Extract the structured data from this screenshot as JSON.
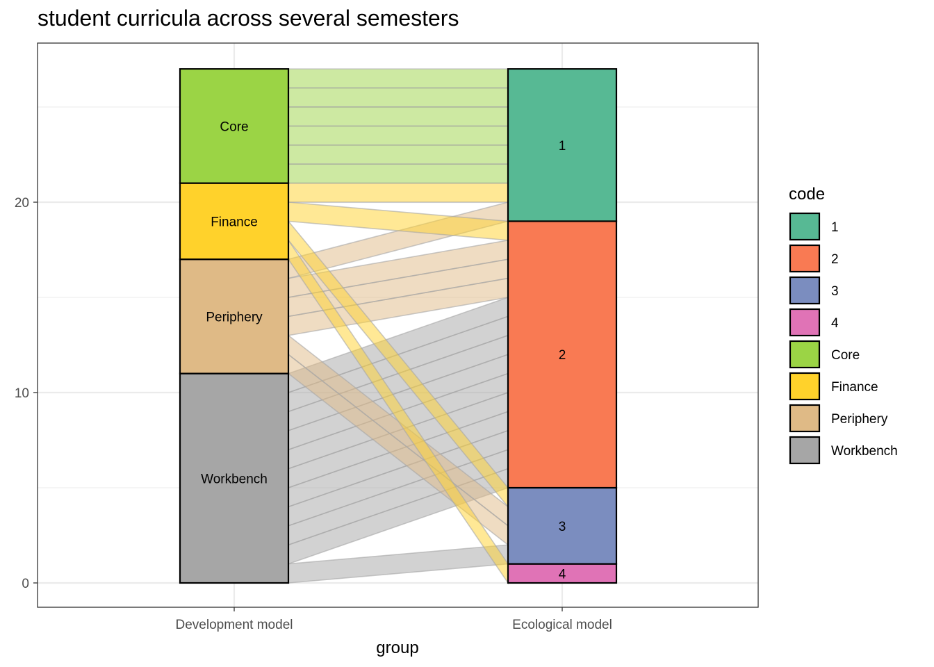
{
  "chart_data": {
    "type": "alluvial",
    "title": "student curricula across several semesters",
    "xlabel": "group",
    "ylabel": "",
    "x_axes": [
      "Development model",
      "Ecological model"
    ],
    "ylim": [
      -1.3,
      28.3
    ],
    "y_ticks": [
      0,
      10,
      20
    ],
    "grid": true,
    "legend": {
      "title": "code",
      "position": "right",
      "entries": [
        {
          "label": "1",
          "color": "#57b994"
        },
        {
          "label": "2",
          "color": "#f97a53"
        },
        {
          "label": "3",
          "color": "#7b8dbf"
        },
        {
          "label": "4",
          "color": "#e073b6"
        },
        {
          "label": "Core",
          "color": "#9bd445"
        },
        {
          "label": "Finance",
          "color": "#ffd22b"
        },
        {
          "label": "Periphery",
          "color": "#dfba86"
        },
        {
          "label": "Workbench",
          "color": "#a6a6a6"
        }
      ]
    },
    "strata": {
      "Development model": [
        {
          "label": "Workbench",
          "value": 11
        },
        {
          "label": "Periphery",
          "value": 6
        },
        {
          "label": "Finance",
          "value": 4
        },
        {
          "label": "Core",
          "value": 6
        }
      ],
      "Ecological model": [
        {
          "label": "4",
          "value": 1
        },
        {
          "label": "3",
          "value": 4
        },
        {
          "label": "2",
          "value": 14
        },
        {
          "label": "1",
          "value": 8
        }
      ]
    },
    "flows": [
      {
        "from": "Workbench",
        "to": "4",
        "value": 0
      },
      {
        "from": "Workbench",
        "to": "3",
        "value": 1
      },
      {
        "from": "Workbench",
        "to": "2",
        "value": 10
      },
      {
        "from": "Periphery",
        "to": "3",
        "value": 2
      },
      {
        "from": "Periphery",
        "to": "2",
        "value": 3
      },
      {
        "from": "Periphery",
        "to": "1",
        "value": 1
      },
      {
        "from": "Finance",
        "to": "4",
        "value": 1
      },
      {
        "from": "Finance",
        "to": "3",
        "value": 1
      },
      {
        "from": "Finance",
        "to": "2",
        "value": 1
      },
      {
        "from": "Finance",
        "to": "1",
        "value": 1
      },
      {
        "from": "Core",
        "to": "1",
        "value": 6
      }
    ]
  }
}
